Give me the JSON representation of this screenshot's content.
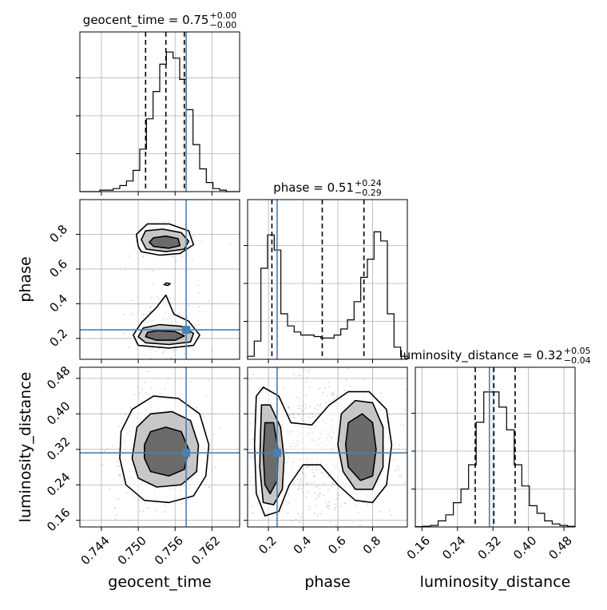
{
  "colors": {
    "truth": "#4682b4",
    "hist": "#000000",
    "grid": "#b0b0b0",
    "scatter": "#9a9a9a"
  },
  "params": [
    {
      "name": "geocent_time",
      "label": "geocent_time",
      "range": [
        0.7405,
        0.7665
      ],
      "ticks": [
        "0.744",
        "0.750",
        "0.756",
        "0.762"
      ],
      "truth": 0.7578,
      "quantiles": [
        0.7512,
        0.7545,
        0.7575
      ],
      "title": {
        "main": "geocent_time = 0.75",
        "sup": "+0.00",
        "sub": "−0.00"
      }
    },
    {
      "name": "phase",
      "label": "phase",
      "range": [
        0.08,
        1.0
      ],
      "ticks": [
        "0.2",
        "0.4",
        "0.6",
        "0.8"
      ],
      "truth": 0.25,
      "quantiles": [
        0.22,
        0.51,
        0.75
      ],
      "title": {
        "main": "phase = 0.51",
        "sup": "+0.24",
        "sub": "−0.29"
      }
    },
    {
      "name": "luminosity_distance",
      "label": "luminosity_distance",
      "range": [
        0.145,
        0.505
      ],
      "ticks": [
        "0.16",
        "0.24",
        "0.32",
        "0.40",
        "0.48"
      ],
      "truth": 0.312,
      "quantiles": [
        0.28,
        0.322,
        0.37
      ],
      "title": {
        "main": "luminosity_distance = 0.32",
        "sup": "+0.05",
        "sub": "−0.04"
      }
    }
  ],
  "chart_data": {
    "type": "scatter",
    "subtype": "corner",
    "grid": true,
    "hist_geocent_time": [
      0,
      0,
      0,
      0.01,
      0.01,
      0.02,
      0.04,
      0.07,
      0.14,
      0.28,
      0.48,
      0.66,
      0.84,
      0.92,
      0.88,
      0.74,
      0.54,
      0.31,
      0.15,
      0.06,
      0.02,
      0.01,
      0,
      0
    ],
    "hist_phase": [
      0.02,
      0.12,
      0.6,
      0.82,
      0.72,
      0.3,
      0.22,
      0.18,
      0.16,
      0.16,
      0.15,
      0.14,
      0.14,
      0.16,
      0.2,
      0.26,
      0.38,
      0.54,
      0.66,
      0.84,
      0.78,
      0.3,
      0.08,
      0.02
    ],
    "hist_luminosity_distance": [
      0.002,
      0.005,
      0.01,
      0.04,
      0.08,
      0.16,
      0.25,
      0.41,
      0.69,
      0.89,
      0.89,
      0.79,
      0.64,
      0.41,
      0.27,
      0.14,
      0.09,
      0.04,
      0.02,
      0.01,
      0.004
    ],
    "contours_phase_vs_geocent_time": [
      {
        "level": "outer",
        "points": [
          [
            0.7505,
            0.7
          ],
          [
            0.7535,
            0.68
          ],
          [
            0.7568,
            0.69
          ],
          [
            0.759,
            0.74
          ],
          [
            0.7582,
            0.82
          ],
          [
            0.755,
            0.86
          ],
          [
            0.7515,
            0.86
          ],
          [
            0.7497,
            0.8
          ],
          [
            0.75,
            0.73
          ]
        ]
      },
      {
        "level": "middle",
        "points": [
          [
            0.7513,
            0.715
          ],
          [
            0.7545,
            0.7
          ],
          [
            0.7575,
            0.715
          ],
          [
            0.7582,
            0.76
          ],
          [
            0.757,
            0.81
          ],
          [
            0.754,
            0.83
          ],
          [
            0.7512,
            0.82
          ],
          [
            0.7505,
            0.77
          ]
        ]
      },
      {
        "level": "inner",
        "points": [
          [
            0.7525,
            0.73
          ],
          [
            0.755,
            0.72
          ],
          [
            0.7568,
            0.735
          ],
          [
            0.7565,
            0.775
          ],
          [
            0.7545,
            0.79
          ],
          [
            0.7525,
            0.78
          ],
          [
            0.7518,
            0.755
          ]
        ]
      },
      {
        "level": "outer",
        "points": [
          [
            0.7492,
            0.22
          ],
          [
            0.75,
            0.16
          ],
          [
            0.755,
            0.145
          ],
          [
            0.759,
            0.16
          ],
          [
            0.76,
            0.22
          ],
          [
            0.7582,
            0.3
          ],
          [
            0.7558,
            0.34
          ],
          [
            0.7545,
            0.45
          ],
          [
            0.753,
            0.38
          ],
          [
            0.7505,
            0.29
          ]
        ]
      },
      {
        "level": "middle",
        "points": [
          [
            0.75,
            0.21
          ],
          [
            0.7512,
            0.175
          ],
          [
            0.755,
            0.165
          ],
          [
            0.7585,
            0.18
          ],
          [
            0.759,
            0.23
          ],
          [
            0.757,
            0.27
          ],
          [
            0.7535,
            0.28
          ],
          [
            0.7508,
            0.26
          ]
        ]
      },
      {
        "level": "inner",
        "points": [
          [
            0.7512,
            0.21
          ],
          [
            0.753,
            0.19
          ],
          [
            0.756,
            0.19
          ],
          [
            0.7575,
            0.215
          ],
          [
            0.756,
            0.24
          ],
          [
            0.753,
            0.245
          ],
          [
            0.7515,
            0.235
          ]
        ]
      },
      {
        "level": "outer",
        "points": [
          [
            0.7542,
            0.51
          ],
          [
            0.7548,
            0.505
          ],
          [
            0.7552,
            0.515
          ],
          [
            0.7546,
            0.52
          ]
        ]
      }
    ],
    "contours_luminosity_distance_vs_geocent_time": [
      {
        "level": "outer",
        "points": [
          [
            0.747,
            0.3
          ],
          [
            0.748,
            0.24
          ],
          [
            0.751,
            0.205
          ],
          [
            0.755,
            0.2
          ],
          [
            0.759,
            0.215
          ],
          [
            0.761,
            0.26
          ],
          [
            0.7615,
            0.33
          ],
          [
            0.76,
            0.4
          ],
          [
            0.7565,
            0.435
          ],
          [
            0.7525,
            0.44
          ],
          [
            0.749,
            0.41
          ],
          [
            0.7472,
            0.36
          ]
        ]
      },
      {
        "level": "middle",
        "points": [
          [
            0.749,
            0.3
          ],
          [
            0.75,
            0.255
          ],
          [
            0.753,
            0.235
          ],
          [
            0.757,
            0.24
          ],
          [
            0.7595,
            0.27
          ],
          [
            0.7598,
            0.33
          ],
          [
            0.7585,
            0.385
          ],
          [
            0.7555,
            0.405
          ],
          [
            0.752,
            0.4
          ],
          [
            0.7498,
            0.37
          ]
        ]
      },
      {
        "level": "inner",
        "points": [
          [
            0.751,
            0.3
          ],
          [
            0.752,
            0.27
          ],
          [
            0.755,
            0.26
          ],
          [
            0.7575,
            0.275
          ],
          [
            0.7582,
            0.32
          ],
          [
            0.757,
            0.36
          ],
          [
            0.7545,
            0.37
          ],
          [
            0.752,
            0.36
          ],
          [
            0.751,
            0.33
          ]
        ]
      }
    ],
    "contours_luminosity_distance_vs_phase": [
      {
        "level": "outer",
        "points": [
          [
            0.13,
            0.44
          ],
          [
            0.17,
            0.46
          ],
          [
            0.26,
            0.44
          ],
          [
            0.33,
            0.38
          ],
          [
            0.45,
            0.375
          ],
          [
            0.55,
            0.42
          ],
          [
            0.66,
            0.45
          ],
          [
            0.78,
            0.45
          ],
          [
            0.88,
            0.41
          ],
          [
            0.91,
            0.33
          ],
          [
            0.88,
            0.24
          ],
          [
            0.8,
            0.2
          ],
          [
            0.7,
            0.205
          ],
          [
            0.6,
            0.24
          ],
          [
            0.5,
            0.285
          ],
          [
            0.4,
            0.285
          ],
          [
            0.32,
            0.24
          ],
          [
            0.26,
            0.18
          ],
          [
            0.18,
            0.17
          ],
          [
            0.13,
            0.22
          ],
          [
            0.12,
            0.33
          ]
        ]
      },
      {
        "level": "middle",
        "points": [
          [
            0.16,
            0.42
          ],
          [
            0.21,
            0.42
          ],
          [
            0.27,
            0.37
          ],
          [
            0.29,
            0.3
          ],
          [
            0.28,
            0.23
          ],
          [
            0.23,
            0.195
          ],
          [
            0.17,
            0.2
          ],
          [
            0.15,
            0.28
          ],
          [
            0.155,
            0.36
          ]
        ]
      },
      {
        "level": "middle",
        "points": [
          [
            0.62,
            0.4
          ],
          [
            0.7,
            0.43
          ],
          [
            0.8,
            0.425
          ],
          [
            0.86,
            0.37
          ],
          [
            0.86,
            0.28
          ],
          [
            0.8,
            0.23
          ],
          [
            0.7,
            0.23
          ],
          [
            0.63,
            0.27
          ],
          [
            0.6,
            0.33
          ]
        ]
      },
      {
        "level": "inner",
        "points": [
          [
            0.18,
            0.38
          ],
          [
            0.23,
            0.38
          ],
          [
            0.255,
            0.32
          ],
          [
            0.25,
            0.25
          ],
          [
            0.21,
            0.22
          ],
          [
            0.18,
            0.24
          ],
          [
            0.17,
            0.31
          ]
        ]
      },
      {
        "level": "inner",
        "points": [
          [
            0.66,
            0.38
          ],
          [
            0.74,
            0.4
          ],
          [
            0.8,
            0.38
          ],
          [
            0.82,
            0.32
          ],
          [
            0.8,
            0.26
          ],
          [
            0.73,
            0.25
          ],
          [
            0.66,
            0.28
          ],
          [
            0.645,
            0.33
          ]
        ]
      }
    ]
  }
}
